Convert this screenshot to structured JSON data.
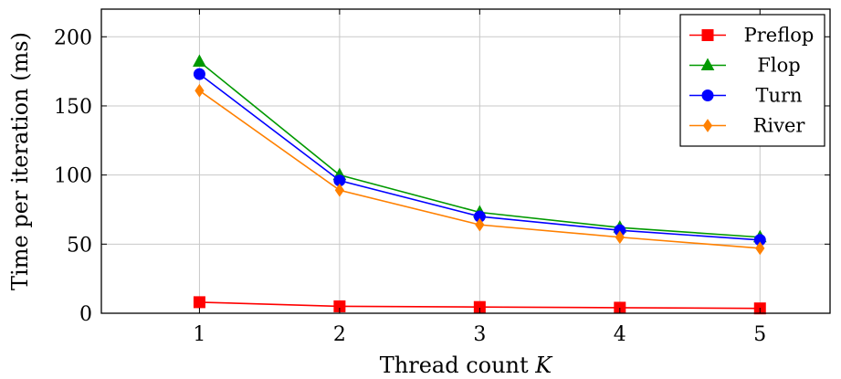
{
  "chart_data": {
    "type": "line",
    "xlabel_text": "Thread count ",
    "xlabel_var": "K",
    "ylabel": "Time per iteration (ms)",
    "x": [
      1,
      2,
      3,
      4,
      5
    ],
    "xlim": [
      0.3,
      5.5
    ],
    "ylim": [
      0,
      220
    ],
    "xticks": [
      1,
      2,
      3,
      4,
      5
    ],
    "yticks": [
      0,
      50,
      100,
      150,
      200
    ],
    "grid": true,
    "legend_position": "top-right",
    "series": [
      {
        "name": "Preflop",
        "color": "#ff0000",
        "marker": "square",
        "values": [
          8,
          5,
          4.5,
          4,
          3.5
        ]
      },
      {
        "name": "Flop",
        "color": "#009900",
        "marker": "triangle",
        "values": [
          182,
          100,
          73,
          62,
          55
        ]
      },
      {
        "name": "Turn",
        "color": "#0000ff",
        "marker": "circle",
        "values": [
          173,
          96,
          70,
          60,
          53
        ]
      },
      {
        "name": "River",
        "color": "#ff8000",
        "marker": "diamond",
        "values": [
          161,
          89,
          64,
          55,
          47
        ]
      }
    ]
  }
}
